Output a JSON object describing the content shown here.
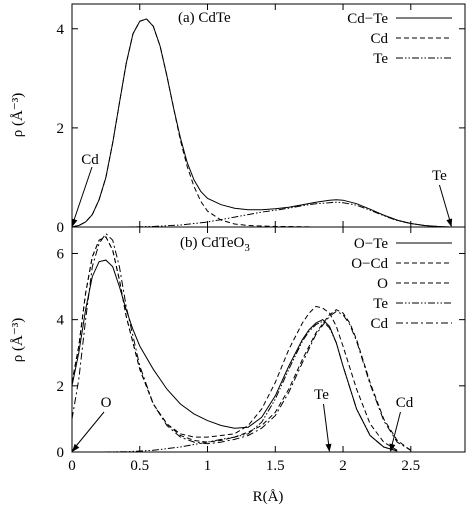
{
  "chart_data": [
    {
      "type": "line",
      "panel_label": "(a) CdTe",
      "xlim": [
        0,
        2.9
      ],
      "ylim": [
        0,
        4.5
      ],
      "yticks": [
        "0",
        "2",
        "4"
      ],
      "ylabel": "ρ (Å⁻³)",
      "legend_position": "top-right",
      "series": [
        {
          "name": "Cd−Te",
          "dash": "solid",
          "x": [
            0,
            0.05,
            0.1,
            0.15,
            0.2,
            0.25,
            0.3,
            0.35,
            0.4,
            0.45,
            0.5,
            0.55,
            0.6,
            0.65,
            0.7,
            0.75,
            0.8,
            0.85,
            0.9,
            0.95,
            1.0,
            1.1,
            1.2,
            1.3,
            1.4,
            1.5,
            1.6,
            1.7,
            1.8,
            1.9,
            1.95,
            2.0,
            2.1,
            2.2,
            2.3,
            2.4,
            2.5,
            2.6,
            2.7,
            2.8
          ],
          "y": [
            0,
            0.03,
            0.1,
            0.25,
            0.55,
            1.0,
            1.7,
            2.5,
            3.3,
            3.9,
            4.15,
            4.2,
            4.05,
            3.65,
            3.05,
            2.4,
            1.8,
            1.3,
            0.95,
            0.72,
            0.58,
            0.45,
            0.38,
            0.35,
            0.35,
            0.37,
            0.4,
            0.45,
            0.5,
            0.54,
            0.55,
            0.54,
            0.47,
            0.36,
            0.24,
            0.14,
            0.07,
            0.03,
            0.01,
            0
          ]
        },
        {
          "name": "Cd",
          "dash": "dashed",
          "x": [
            0,
            0.05,
            0.1,
            0.15,
            0.2,
            0.25,
            0.3,
            0.35,
            0.4,
            0.45,
            0.5,
            0.55,
            0.6,
            0.65,
            0.7,
            0.75,
            0.8,
            0.85,
            0.9,
            0.95,
            1.0,
            1.1,
            1.2,
            1.3,
            1.4,
            1.5,
            1.6,
            1.8,
            2.0,
            2.2,
            2.4,
            2.6,
            2.8
          ],
          "y": [
            0,
            0.03,
            0.1,
            0.25,
            0.55,
            1.0,
            1.7,
            2.5,
            3.3,
            3.9,
            4.15,
            4.2,
            4.05,
            3.65,
            3.05,
            2.4,
            1.75,
            1.22,
            0.82,
            0.52,
            0.32,
            0.14,
            0.06,
            0.03,
            0.02,
            0.01,
            0.01,
            0,
            0,
            0,
            0,
            0,
            0
          ]
        },
        {
          "name": "Te",
          "dash": "dashdotdot",
          "x": [
            0,
            0.4,
            0.6,
            0.8,
            1.0,
            1.1,
            1.2,
            1.3,
            1.4,
            1.5,
            1.6,
            1.7,
            1.8,
            1.9,
            1.95,
            2.0,
            2.1,
            2.2,
            2.3,
            2.4,
            2.5,
            2.6,
            2.7,
            2.8
          ],
          "y": [
            0,
            0,
            0.01,
            0.04,
            0.1,
            0.15,
            0.2,
            0.25,
            0.3,
            0.34,
            0.38,
            0.43,
            0.47,
            0.49,
            0.5,
            0.49,
            0.44,
            0.34,
            0.23,
            0.13,
            0.07,
            0.03,
            0.01,
            0
          ]
        }
      ],
      "annotations": [
        {
          "text": "Cd",
          "x": 0.0,
          "y": 0.0
        },
        {
          "text": "Te",
          "x": 2.8,
          "y": 0.0
        }
      ]
    },
    {
      "type": "line",
      "panel_label_main": "(b) CdTeO",
      "panel_label_sub": "3",
      "xlim": [
        0,
        2.9
      ],
      "ylim": [
        0,
        6.8
      ],
      "xticks": [
        "0",
        "0.5",
        "1",
        "1.5",
        "2",
        "2.5"
      ],
      "yticks": [
        "0",
        "2",
        "4",
        "6"
      ],
      "xlabel": "R(Å)",
      "ylabel": "ρ (Å⁻³)",
      "legend_position": "top-right",
      "series": [
        {
          "name": "O−Te",
          "dash": "solid",
          "x": [
            0,
            0.05,
            0.1,
            0.15,
            0.2,
            0.25,
            0.3,
            0.35,
            0.4,
            0.45,
            0.5,
            0.6,
            0.7,
            0.8,
            0.9,
            1.0,
            1.1,
            1.2,
            1.3,
            1.4,
            1.5,
            1.6,
            1.7,
            1.75,
            1.8,
            1.85,
            1.9,
            1.95,
            2.0,
            2.1,
            2.2,
            2.3,
            2.4
          ],
          "y": [
            2.0,
            3.0,
            4.3,
            5.3,
            5.75,
            5.8,
            5.6,
            5.0,
            4.3,
            3.7,
            3.2,
            2.5,
            1.9,
            1.45,
            1.15,
            0.95,
            0.8,
            0.72,
            0.75,
            1.05,
            1.7,
            2.6,
            3.4,
            3.7,
            3.9,
            4.0,
            3.8,
            3.3,
            2.6,
            1.3,
            0.5,
            0.15,
            0.03
          ]
        },
        {
          "name": "O−Cd",
          "dash": "dashed",
          "x": [
            0,
            0.05,
            0.1,
            0.15,
            0.2,
            0.25,
            0.3,
            0.35,
            0.4,
            0.5,
            0.6,
            0.7,
            0.8,
            0.9,
            1.0,
            1.1,
            1.2,
            1.3,
            1.4,
            1.5,
            1.6,
            1.7,
            1.75,
            1.8,
            1.85,
            1.9,
            1.95,
            2.0,
            2.1,
            2.2,
            2.3,
            2.4
          ],
          "y": [
            2.1,
            3.2,
            4.8,
            5.9,
            6.4,
            6.5,
            6.1,
            5.2,
            4.1,
            2.5,
            1.45,
            0.85,
            0.55,
            0.45,
            0.45,
            0.5,
            0.55,
            0.8,
            1.3,
            2.1,
            3.1,
            3.9,
            4.2,
            4.4,
            4.35,
            4.2,
            3.8,
            3.2,
            1.9,
            0.85,
            0.3,
            0.05
          ]
        },
        {
          "name": "O",
          "dash": "dashed",
          "x": [
            0,
            0.05,
            0.1,
            0.15,
            0.2,
            0.25,
            0.3,
            0.35,
            0.4,
            0.5,
            0.6,
            0.7,
            0.8,
            0.9,
            1.0,
            1.1,
            1.2,
            1.3,
            1.4,
            1.5,
            1.6,
            1.7,
            1.8,
            1.9,
            1.95,
            2.0,
            2.05,
            2.1,
            2.2,
            2.3,
            2.4,
            2.5
          ],
          "y": [
            2.1,
            3.2,
            4.8,
            5.9,
            6.4,
            6.5,
            6.1,
            5.2,
            4.1,
            2.5,
            1.45,
            0.85,
            0.5,
            0.35,
            0.3,
            0.35,
            0.45,
            0.6,
            0.8,
            1.2,
            1.9,
            2.8,
            3.6,
            4.15,
            4.3,
            4.2,
            3.9,
            3.4,
            2.1,
            1.0,
            0.35,
            0.05
          ]
        },
        {
          "name": "Te",
          "dash": "dashdotdot",
          "x": [
            0,
            0.2,
            0.4,
            0.6,
            0.8,
            1.0,
            1.1,
            1.2,
            1.3,
            1.4,
            1.5,
            1.6,
            1.7,
            1.75,
            1.8,
            1.85,
            1.9,
            1.95,
            2.0,
            2.1,
            2.2,
            2.3,
            2.4
          ],
          "y": [
            0,
            0,
            0.01,
            0.05,
            0.15,
            0.3,
            0.38,
            0.45,
            0.55,
            0.9,
            1.6,
            2.5,
            3.35,
            3.65,
            3.85,
            3.95,
            3.75,
            3.3,
            2.6,
            1.3,
            0.5,
            0.15,
            0.03
          ]
        },
        {
          "name": "Cd",
          "dash": "dashdot",
          "x": [
            0,
            0.05,
            0.1,
            0.15,
            0.2,
            0.25,
            0.3,
            0.35,
            0.4,
            0.5,
            0.6,
            0.7,
            0.8,
            0.9,
            1.0,
            1.1,
            1.2,
            1.3,
            1.4,
            1.5,
            1.6,
            1.7,
            1.8,
            1.9,
            1.95,
            2.0,
            2.05,
            2.1,
            2.2,
            2.3,
            2.4,
            2.5
          ],
          "y": [
            1.0,
            2.2,
            4.0,
            5.6,
            6.3,
            6.6,
            6.4,
            5.6,
            4.4,
            2.6,
            1.45,
            0.8,
            0.45,
            0.3,
            0.25,
            0.3,
            0.38,
            0.5,
            0.72,
            1.1,
            1.8,
            2.7,
            3.55,
            4.1,
            4.25,
            4.15,
            3.85,
            3.35,
            2.05,
            0.95,
            0.3,
            0.05
          ]
        }
      ],
      "annotations": [
        {
          "text": "O",
          "x": 0.0,
          "y": 0.0
        },
        {
          "text": "Te",
          "x": 1.9,
          "y": 0.0
        },
        {
          "text": "Cd",
          "x": 2.35,
          "y": 0.0
        }
      ]
    }
  ]
}
